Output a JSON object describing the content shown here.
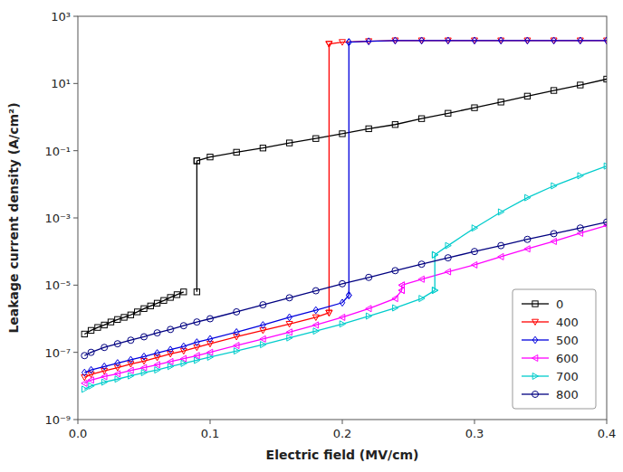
{
  "chart_data": {
    "type": "line",
    "xlabel": "Electric field (MV/cm)",
    "ylabel": "Leakage current density (A/cm²)",
    "log": "y",
    "xlim": [
      0.0,
      0.4
    ],
    "ylim": [
      1e-09,
      1000
    ],
    "xticks": [
      {
        "value": 0.0,
        "label": "0.0"
      },
      0.1,
      0.2,
      0.3,
      0.4
    ],
    "yticks": [
      {
        "value": 1e-09,
        "label": "10⁻⁹"
      },
      {
        "value": 1e-07,
        "label": "10⁻⁷"
      },
      {
        "value": 1e-05,
        "label": "10⁻⁵"
      },
      {
        "value": 0.001,
        "label": "10⁻³"
      },
      {
        "value": 0.1,
        "label": "10⁻¹"
      },
      {
        "value": 10,
        "label": "10¹"
      },
      {
        "value": 1000,
        "label": "10³"
      }
    ],
    "grid": false,
    "legend": "lower right",
    "series": [
      {
        "name": "0",
        "color": "#000000",
        "marker": "square",
        "x": [
          0.005,
          0.01,
          0.015,
          0.02,
          0.025,
          0.03,
          0.035,
          0.04,
          0.045,
          0.05,
          0.055,
          0.06,
          0.065,
          0.07,
          0.075,
          0.08,
          null,
          0.09,
          0.09,
          null,
          0.09,
          0.1,
          0.12,
          0.14,
          0.16,
          0.18,
          0.2,
          0.22,
          0.24,
          0.26,
          0.28,
          0.3,
          0.32,
          0.34,
          0.36,
          0.38,
          0.4
        ],
        "values": [
          3.5e-07,
          4.5e-07,
          5.5e-07,
          6.5e-07,
          8e-07,
          9.5e-07,
          1.1e-06,
          1.3e-06,
          1.6e-06,
          2e-06,
          2.4e-06,
          2.9e-06,
          3.5e-06,
          4.3e-06,
          5.2e-06,
          6.3e-06,
          null,
          6.3e-06,
          0.05,
          null,
          0.05,
          0.065,
          0.09,
          0.12,
          0.17,
          0.23,
          0.32,
          0.45,
          0.6,
          0.9,
          1.3,
          1.9,
          2.8,
          4.2,
          6.2,
          9.0,
          13.5
        ]
      },
      {
        "name": "400",
        "color": "#ff0000",
        "marker": "triangle-down",
        "x": [
          0.005,
          0.01,
          0.02,
          0.03,
          0.04,
          0.05,
          0.06,
          0.07,
          0.08,
          0.09,
          0.1,
          0.12,
          0.14,
          0.16,
          0.18,
          0.19,
          null,
          0.19,
          0.19,
          null,
          0.19,
          0.2,
          0.22,
          0.24,
          0.26,
          0.28,
          0.3,
          0.32,
          0.34,
          0.36,
          0.38,
          0.4
        ],
        "values": [
          1.8e-08,
          2.2e-08,
          2.8e-08,
          3.5e-08,
          4.5e-08,
          5.5e-08,
          7e-08,
          9e-08,
          1.1e-07,
          1.4e-07,
          1.8e-07,
          2.9e-07,
          4.5e-07,
          7e-07,
          1.1e-06,
          1.5e-06,
          null,
          1.5e-06,
          150.0,
          null,
          150.0,
          170.0,
          180.0,
          190.0,
          190.0,
          190.0,
          190.0,
          190.0,
          190.0,
          190.0,
          190.0,
          190.0
        ]
      },
      {
        "name": "500",
        "color": "#0000dd",
        "marker": "diamond",
        "x": [
          0.005,
          0.01,
          0.02,
          0.03,
          0.04,
          0.05,
          0.06,
          0.07,
          0.08,
          0.09,
          0.1,
          0.12,
          0.14,
          0.16,
          0.18,
          0.2,
          0.205,
          null,
          0.205,
          0.205,
          null,
          0.205,
          0.22,
          0.24,
          0.26,
          0.28,
          0.3,
          0.32,
          0.34,
          0.36,
          0.38,
          0.4
        ],
        "values": [
          2.5e-08,
          3e-08,
          3.8e-08,
          4.8e-08,
          6e-08,
          7.5e-08,
          9.5e-08,
          1.2e-07,
          1.5e-07,
          2e-07,
          2.5e-07,
          4e-07,
          6.5e-07,
          1.1e-06,
          1.8e-06,
          3e-06,
          5e-06,
          null,
          5e-06,
          170.0,
          null,
          170.0,
          180.0,
          190.0,
          190.0,
          190.0,
          190.0,
          190.0,
          190.0,
          190.0,
          190.0,
          190.0
        ]
      },
      {
        "name": "600",
        "color": "#ff00ff",
        "marker": "triangle-left",
        "x": [
          0.005,
          0.01,
          0.02,
          0.03,
          0.04,
          0.05,
          0.06,
          0.07,
          0.08,
          0.09,
          0.1,
          0.12,
          0.14,
          0.16,
          0.18,
          0.2,
          0.22,
          0.24,
          0.245,
          null,
          0.245,
          0.245,
          null,
          0.245,
          0.26,
          0.28,
          0.3,
          0.32,
          0.34,
          0.36,
          0.38,
          0.4
        ],
        "values": [
          1.2e-08,
          1.5e-08,
          1.9e-08,
          2.3e-08,
          2.9e-08,
          3.5e-08,
          4.3e-08,
          5.3e-08,
          6.5e-08,
          8e-08,
          1e-07,
          1.6e-07,
          2.5e-07,
          4e-07,
          6.5e-07,
          1.1e-06,
          2e-06,
          4e-06,
          7e-06,
          null,
          7e-06,
          1e-05,
          null,
          1e-05,
          1.5e-05,
          2.5e-05,
          4e-05,
          7e-05,
          0.00012,
          0.0002,
          0.00035,
          0.0006
        ]
      },
      {
        "name": "700",
        "color": "#00cccc",
        "marker": "triangle-right",
        "x": [
          0.005,
          0.01,
          0.02,
          0.03,
          0.04,
          0.05,
          0.06,
          0.07,
          0.08,
          0.09,
          0.1,
          0.12,
          0.14,
          0.16,
          0.18,
          0.2,
          0.22,
          0.24,
          0.26,
          0.27,
          null,
          0.27,
          0.27,
          null,
          0.27,
          0.28,
          0.3,
          0.32,
          0.34,
          0.36,
          0.38,
          0.4
        ],
        "values": [
          8e-09,
          1e-08,
          1.3e-08,
          1.6e-08,
          2e-08,
          2.5e-08,
          3e-08,
          3.8e-08,
          4.7e-08,
          5.8e-08,
          7.2e-08,
          1.1e-07,
          1.7e-07,
          2.7e-07,
          4.3e-07,
          7e-07,
          1.2e-06,
          2.1e-06,
          4e-06,
          7e-06,
          null,
          7e-06,
          8e-05,
          null,
          8e-05,
          0.00015,
          0.0005,
          0.0015,
          0.004,
          0.009,
          0.018,
          0.035
        ]
      },
      {
        "name": "800",
        "color": "#000080",
        "marker": "circle",
        "x": [
          0.005,
          0.01,
          0.02,
          0.03,
          0.04,
          0.05,
          0.06,
          0.07,
          0.08,
          0.09,
          0.1,
          0.12,
          0.14,
          0.16,
          0.18,
          0.2,
          0.22,
          0.24,
          0.26,
          0.28,
          0.3,
          0.32,
          0.34,
          0.36,
          0.38,
          0.4
        ],
        "values": [
          8e-08,
          1e-07,
          1.4e-07,
          1.8e-07,
          2.3e-07,
          2.9e-07,
          3.8e-07,
          4.8e-07,
          6.2e-07,
          8e-07,
          1e-06,
          1.6e-06,
          2.6e-06,
          4.2e-06,
          6.8e-06,
          1.1e-05,
          1.7e-05,
          2.7e-05,
          4.2e-05,
          6.5e-05,
          0.0001,
          0.00015,
          0.00023,
          0.00034,
          0.0005,
          0.00075
        ]
      }
    ]
  }
}
